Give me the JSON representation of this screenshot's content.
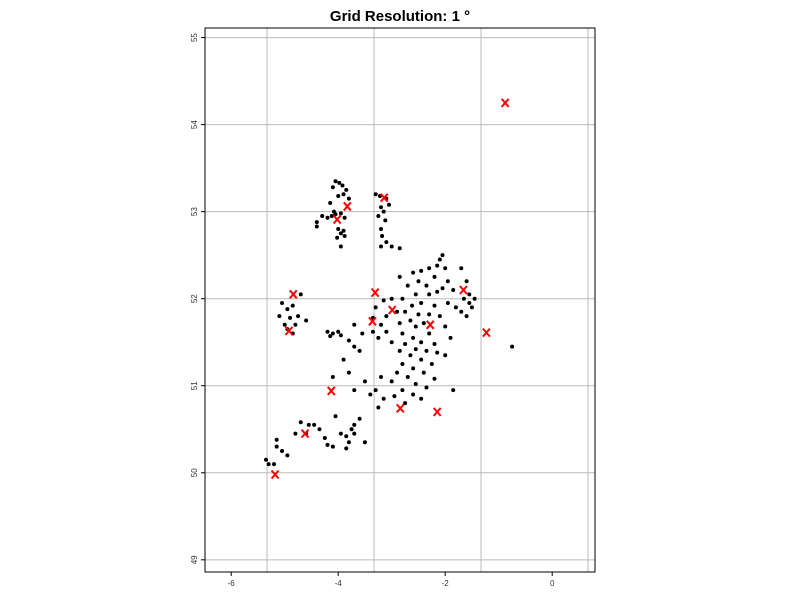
{
  "chart_data": {
    "type": "scatter",
    "title": "Grid Resolution: 1 °",
    "xlim": [
      -6.49,
      0.8
    ],
    "ylim": [
      48.86,
      55.11
    ],
    "xticks": [
      -6,
      -4,
      -2,
      0
    ],
    "yticks": [
      49,
      50,
      51,
      52,
      53,
      54,
      55
    ],
    "grid": true,
    "xgrid": [
      -5.33,
      -3.33,
      -1.33,
      0.67
    ],
    "series": [
      {
        "color": "#000000",
        "marker": "dot",
        "x": [
          -4.05,
          -3.98,
          -3.92,
          -4.1,
          -3.85,
          -3.9,
          -4.0,
          -3.8,
          -4.15,
          -4.08,
          -4.05,
          -4.12,
          -3.95,
          -3.88,
          -4.2,
          -4.4,
          -4.4,
          -4.3,
          -4.0,
          -3.95,
          -3.88,
          -4.02,
          -3.95,
          -3.9,
          -3.3,
          -3.22,
          -3.1,
          -3.05,
          -3.2,
          -3.15,
          -3.25,
          -3.12,
          -3.2,
          -3.18,
          -3.1,
          -3.2,
          -3.0,
          -2.85,
          -2.05,
          -2.1,
          -2.15,
          -2.0,
          -2.3,
          -2.45,
          -2.6,
          -2.85,
          -2.2,
          -1.95,
          -2.5,
          -2.35,
          -2.7,
          -2.05,
          -2.15,
          -2.3,
          -2.55,
          -2.8,
          -3.0,
          -3.15,
          -2.45,
          -2.62,
          -2.2,
          -1.95,
          -3.3,
          -2.75,
          -2.9,
          -2.5,
          -2.3,
          -2.1,
          -3.1,
          -3.35,
          -2.65,
          -2.85,
          -2.4,
          -3.2,
          -2.55,
          -2.0,
          -3.35,
          -3.1,
          -2.8,
          -2.3,
          -2.6,
          -3.25,
          -1.9,
          -2.45,
          -2.75,
          -3.0,
          -2.2,
          -2.55,
          -2.35,
          -2.85,
          -2.15,
          -2.65,
          -2.0,
          -2.45,
          -2.8,
          -2.25,
          -2.6,
          -2.9,
          -2.4,
          -2.7,
          -2.2,
          -3.0,
          -2.55,
          -2.35,
          -2.8,
          -2.6,
          -2.95,
          -2.45,
          -1.85,
          -3.2,
          -3.3,
          -3.15,
          -2.75,
          -3.25,
          -1.7,
          -1.6,
          -1.55,
          -1.65,
          -1.45,
          -1.8,
          -1.7,
          -1.55,
          -1.6,
          -1.85,
          -1.5,
          -0.75,
          -4.2,
          -4.1,
          -4.0,
          -4.15,
          -3.95,
          -3.8,
          -3.7,
          -3.6,
          -3.55,
          -3.7,
          -3.9,
          -3.8,
          -4.1,
          -3.5,
          -3.4,
          -3.7,
          -5.05,
          -4.95,
          -4.85,
          -4.7,
          -5.1,
          -4.9,
          -4.75,
          -5.0,
          -4.8,
          -4.95,
          -4.85,
          -4.6,
          -5.35,
          -5.3,
          -5.2,
          -5.15,
          -5.15,
          -5.05,
          -4.95,
          -4.8,
          -4.7,
          -4.6,
          -4.55,
          -4.45,
          -4.35,
          -4.25,
          -4.2,
          -4.1,
          -3.95,
          -3.85,
          -3.8,
          -3.75,
          -3.7,
          -3.7,
          -3.6,
          -3.5,
          -3.85,
          -4.05
        ],
        "y": [
          53.35,
          53.33,
          53.3,
          53.28,
          53.25,
          53.2,
          53.18,
          53.15,
          53.1,
          53.0,
          52.97,
          52.95,
          52.98,
          52.93,
          52.93,
          52.88,
          52.83,
          52.95,
          52.8,
          52.75,
          52.72,
          52.7,
          52.6,
          52.78,
          53.2,
          53.18,
          53.15,
          53.08,
          53.05,
          53.0,
          52.95,
          52.9,
          52.8,
          52.72,
          52.65,
          52.6,
          52.6,
          52.58,
          52.5,
          52.45,
          52.38,
          52.35,
          52.35,
          52.32,
          52.3,
          52.25,
          52.25,
          52.2,
          52.2,
          52.15,
          52.15,
          52.12,
          52.08,
          52.05,
          52.05,
          52.0,
          52.0,
          51.98,
          51.95,
          51.92,
          51.92,
          51.95,
          51.9,
          51.85,
          51.85,
          51.82,
          51.82,
          51.8,
          51.8,
          51.78,
          51.75,
          51.72,
          51.72,
          51.7,
          51.68,
          51.68,
          51.62,
          51.62,
          51.6,
          51.6,
          51.55,
          51.55,
          51.55,
          51.5,
          51.48,
          51.5,
          51.48,
          51.42,
          51.4,
          51.4,
          51.38,
          51.35,
          51.35,
          51.3,
          51.25,
          51.25,
          51.2,
          51.15,
          51.15,
          51.1,
          51.08,
          51.05,
          51.02,
          50.98,
          50.95,
          50.9,
          50.88,
          50.85,
          50.95,
          51.1,
          50.95,
          50.85,
          50.8,
          50.75,
          52.35,
          52.2,
          52.05,
          52.0,
          52.0,
          51.9,
          51.85,
          51.95,
          51.8,
          52.1,
          51.9,
          51.45,
          51.62,
          51.6,
          51.62,
          51.57,
          51.58,
          51.52,
          51.45,
          51.4,
          51.6,
          51.7,
          51.3,
          51.15,
          51.1,
          51.05,
          50.9,
          50.95,
          51.95,
          51.88,
          51.92,
          52.05,
          51.8,
          51.78,
          51.8,
          51.7,
          51.7,
          51.65,
          51.6,
          51.75,
          50.15,
          50.1,
          50.1,
          50.3,
          50.38,
          50.25,
          50.2,
          50.45,
          50.58,
          50.45,
          50.55,
          50.55,
          50.5,
          50.4,
          50.32,
          50.3,
          50.45,
          50.42,
          50.35,
          50.5,
          50.55,
          50.45,
          50.62,
          50.35,
          50.28,
          50.65
        ]
      },
      {
        "color": "#ff0000",
        "marker": "x",
        "x": [
          -0.88,
          -3.14,
          -3.83,
          -4.02,
          -4.84,
          -3.31,
          -1.66,
          -2.99,
          -3.36,
          -2.28,
          -4.92,
          -1.23,
          -4.13,
          -2.84,
          -2.15,
          -4.62,
          -5.18
        ],
        "y": [
          54.25,
          53.16,
          53.06,
          52.91,
          52.05,
          52.07,
          52.1,
          51.87,
          51.74,
          51.7,
          51.63,
          51.61,
          50.94,
          50.74,
          50.7,
          50.45,
          49.98
        ]
      }
    ]
  }
}
